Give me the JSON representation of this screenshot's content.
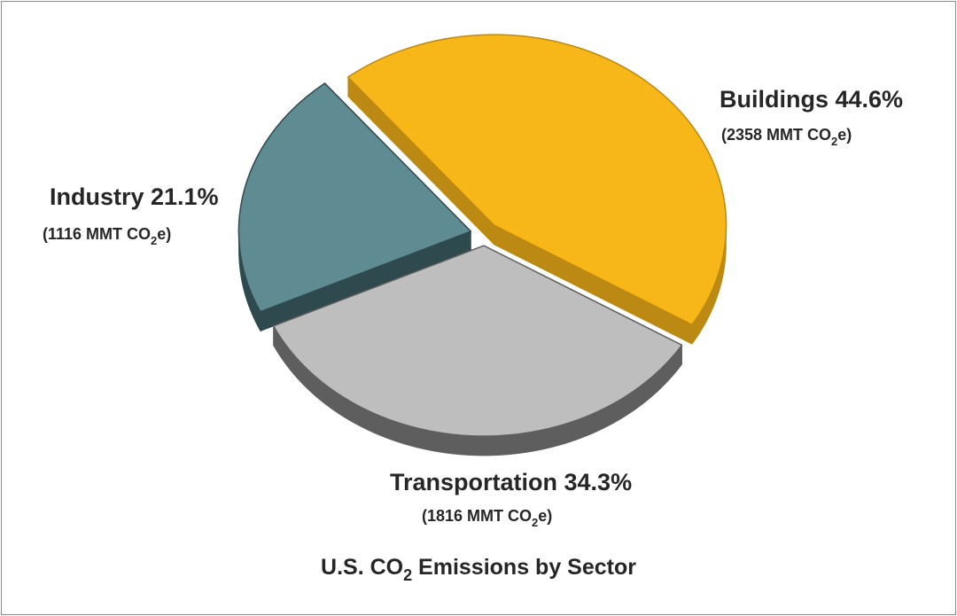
{
  "chart_data": {
    "type": "pie",
    "title": {
      "prefix": "U.S. CO",
      "subscript": "2",
      "suffix": " Emissions by Sector"
    },
    "unit": "MMT CO2e",
    "exploded": true,
    "three_d": true,
    "series": [
      {
        "name": "Buildings",
        "value": 2358,
        "percent": 44.6,
        "label": "Buildings 44.6%",
        "value_label": {
          "prefix": "(2358 MMT CO",
          "subscript": "2",
          "suffix": "e)"
        },
        "color": "#F8B719",
        "side_color": "#BC8912"
      },
      {
        "name": "Transportation",
        "value": 1816,
        "percent": 34.3,
        "label": "Transportation 34.3%",
        "value_label": {
          "prefix": "(1816 MMT CO",
          "subscript": "2",
          "suffix": "e)"
        },
        "color": "#BEBEBE",
        "side_color": "#5E5E5E"
      },
      {
        "name": "Industry",
        "value": 1116,
        "percent": 21.1,
        "label": "Industry 21.1%",
        "value_label": {
          "prefix": "(1116 MMT CO",
          "subscript": "2",
          "suffix": "e)"
        },
        "color": "#5F8C92",
        "side_color": "#2F4A4F"
      }
    ]
  }
}
